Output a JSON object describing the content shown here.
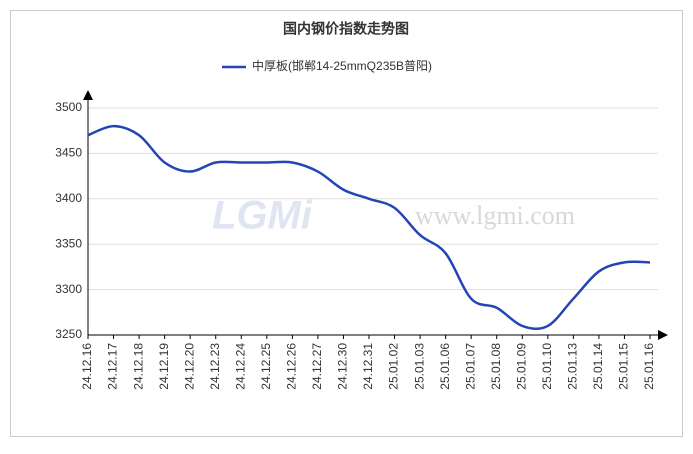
{
  "chart_data": {
    "type": "line",
    "title": "国内钢价指数走势图",
    "categories": [
      "24.12.16",
      "24.12.17",
      "24.12.18",
      "24.12.19",
      "24.12.20",
      "24.12.23",
      "24.12.24",
      "24.12.25",
      "24.12.26",
      "24.12.27",
      "24.12.30",
      "24.12.31",
      "25.01.02",
      "25.01.03",
      "25.01.06",
      "25.01.07",
      "25.01.08",
      "25.01.09",
      "25.01.10",
      "25.01.13",
      "25.01.14",
      "25.01.15",
      "25.01.16"
    ],
    "series": [
      {
        "name": "中厚板(邯郸14-25mmQ235B普阳)",
        "color": "#2346b4",
        "values": [
          3470,
          3480,
          3470,
          3440,
          3430,
          3440,
          3440,
          3440,
          3440,
          3430,
          3410,
          3400,
          3390,
          3360,
          3340,
          3290,
          3280,
          3260,
          3260,
          3290,
          3320,
          3330,
          3330
        ]
      }
    ],
    "ylim": [
      3250,
      3500
    ],
    "yticks": [
      3250,
      3300,
      3350,
      3400,
      3450,
      3500
    ],
    "grid": true,
    "watermark_logo": "LGMi",
    "watermark": "www.lgmi.com"
  }
}
